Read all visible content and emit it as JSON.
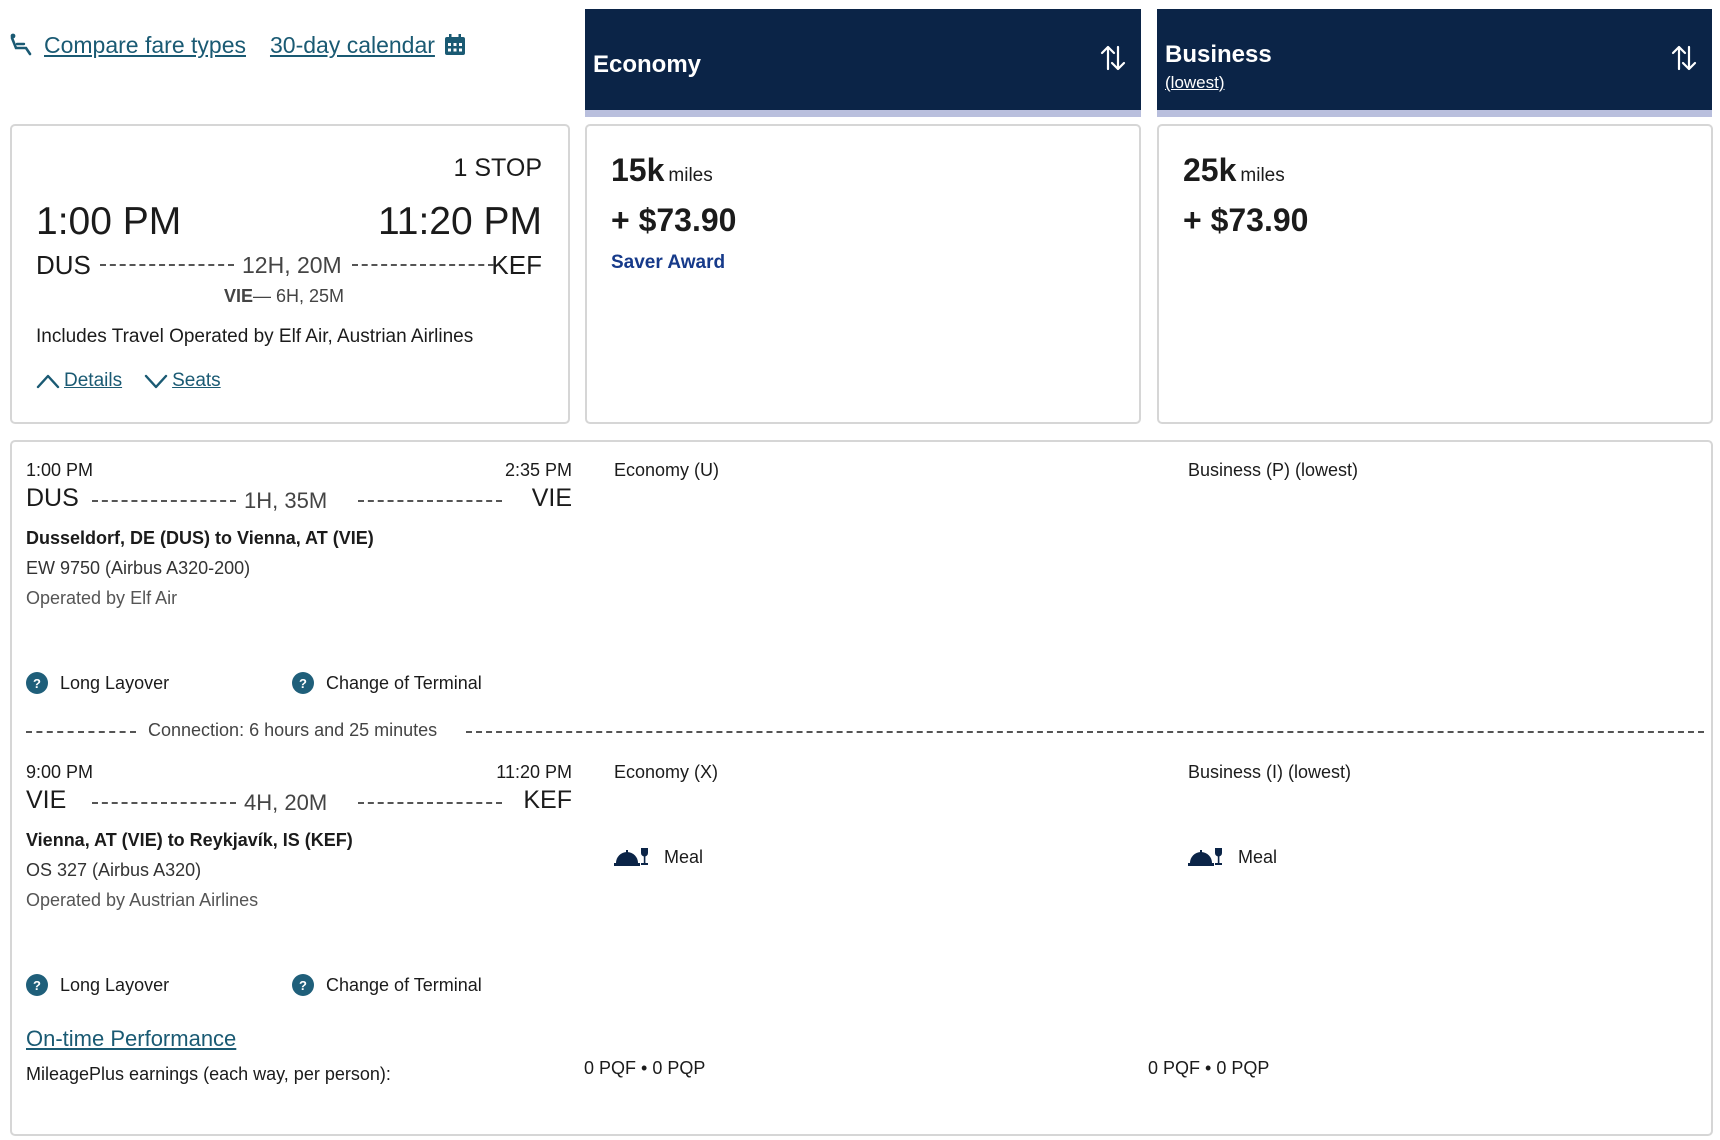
{
  "top_links": {
    "compare": "Compare fare types",
    "calendar": "30-day calendar"
  },
  "fare_headers": {
    "economy": {
      "title": "Economy"
    },
    "business": {
      "title": "Business",
      "sub": "(lowest)"
    }
  },
  "summary": {
    "stops": "1 STOP",
    "dep_time": "1:00 PM",
    "arr_time": "11:20 PM",
    "dep_code": "DUS",
    "arr_code": "KEF",
    "duration": "12H, 20M",
    "via_code": "VIE",
    "via_layover": "— 6H, 25M",
    "operated": "Includes Travel Operated by Elf Air, Austrian Airlines",
    "details_label": "Details",
    "seats_label": "Seats"
  },
  "prices": {
    "economy": {
      "miles": "15k",
      "miles_unit": "miles",
      "cash": "+ $73.90",
      "award": "Saver Award"
    },
    "business": {
      "miles": "25k",
      "miles_unit": "miles",
      "cash": "+ $73.90"
    }
  },
  "segments": [
    {
      "dep_time": "1:00 PM",
      "arr_time": "2:35 PM",
      "dep_code": "DUS",
      "arr_code": "VIE",
      "duration": "1H, 35M",
      "route": "Dusseldorf, DE (DUS) to Vienna, AT (VIE)",
      "flight": "EW 9750 (Airbus A320-200)",
      "operated": "Operated by Elf Air",
      "cabin_economy": "Economy (U)",
      "cabin_business": "Business (P) (lowest)",
      "note1": "Long Layover",
      "note2": "Change of Terminal"
    },
    {
      "dep_time": "9:00 PM",
      "arr_time": "11:20 PM",
      "dep_code": "VIE",
      "arr_code": "KEF",
      "duration": "4H, 20M",
      "route": "Vienna, AT (VIE) to Reykjavík, IS (KEF)",
      "flight": "OS 327 (Airbus A320)",
      "operated": "Operated by Austrian Airlines",
      "cabin_economy": "Economy (X)",
      "cabin_business": "Business (I) (lowest)",
      "meal_economy": "Meal",
      "meal_business": "Meal",
      "note1": "Long Layover",
      "note2": "Change of Terminal"
    }
  ],
  "connection": "Connection: 6 hours and 25 minutes",
  "ontime_label": "On-time Performance",
  "earnings": {
    "label": "MileagePlus earnings (each way, per person):",
    "economy": "0 PQF • 0 PQP",
    "business": "0 PQF • 0 PQP"
  },
  "colors": {
    "navy": "#0b2447",
    "link": "#1a5a73",
    "award": "#163a8a"
  },
  "icons": [
    "seat-icon",
    "calendar-icon",
    "sort-icon",
    "chevron-up-icon",
    "chevron-down-icon",
    "help-icon",
    "meal-icon"
  ]
}
